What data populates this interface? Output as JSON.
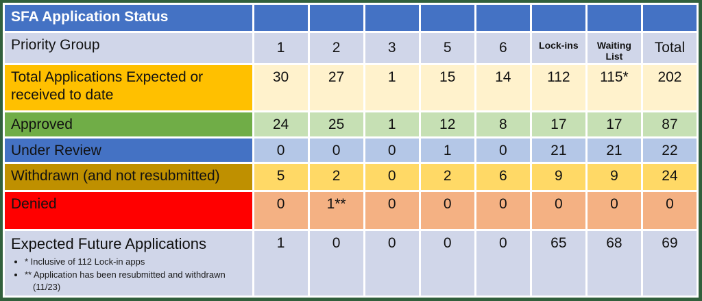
{
  "header": {
    "title": "SFA Application Status"
  },
  "priority": {
    "label": "Priority Group",
    "cols": [
      "1",
      "2",
      "3",
      "5",
      "6",
      "Lock-ins",
      "Waiting List",
      "Total"
    ]
  },
  "rows": [
    {
      "label": "Total Applications Expected or received to date",
      "values": [
        "30",
        "27",
        "1",
        "15",
        "14",
        "112",
        "115*",
        "202"
      ]
    },
    {
      "label": "Approved",
      "values": [
        "24",
        "25",
        "1",
        "12",
        "8",
        "17",
        "17",
        "87"
      ]
    },
    {
      "label": "Under Review",
      "values": [
        "0",
        "0",
        "0",
        "1",
        "0",
        "21",
        "21",
        "22"
      ]
    },
    {
      "label": "Withdrawn (and not resubmitted)",
      "values": [
        "5",
        "2",
        "0",
        "2",
        "6",
        "9",
        "9",
        "24"
      ]
    },
    {
      "label": "Denied",
      "values": [
        "0",
        "1**",
        "0",
        "0",
        "0",
        "0",
        "0",
        "0"
      ]
    },
    {
      "label": "Expected Future Applications",
      "values": [
        "1",
        "0",
        "0",
        "0",
        "0",
        "65",
        "68",
        "69"
      ],
      "footnotes": [
        {
          "text": "* Inclusive of 112 Lock-in apps",
          "cont": ""
        },
        {
          "text": "** Application has been resubmitted and withdrawn",
          "cont": "(11/23)"
        }
      ]
    }
  ],
  "colors": {
    "header_blue": "#4472C4",
    "lavender": "#D0D6E9",
    "orange_label": "#FFC000",
    "cream_data": "#FFF2CC",
    "green_label": "#70AD47",
    "light_green_data": "#C6E0B4",
    "blue_label": "#4472C4",
    "light_blue_data": "#B4C7E7",
    "gold_label": "#BF9000",
    "yellow_data": "#FFD966",
    "red_label": "#FF0000",
    "salmon_data": "#F4B183",
    "outer_border_green": "#31603C",
    "title_text": "#FFFFFF"
  },
  "chart_data": {
    "type": "table",
    "title": "SFA Application Status",
    "categories": [
      "1",
      "2",
      "3",
      "5",
      "6",
      "Lock-ins",
      "Waiting List",
      "Total"
    ],
    "series": [
      {
        "name": "Total Applications Expected or received to date",
        "values": [
          30,
          27,
          1,
          15,
          14,
          112,
          115,
          202
        ]
      },
      {
        "name": "Approved",
        "values": [
          24,
          25,
          1,
          12,
          8,
          17,
          17,
          87
        ]
      },
      {
        "name": "Under Review",
        "values": [
          0,
          0,
          0,
          1,
          0,
          21,
          21,
          22
        ]
      },
      {
        "name": "Withdrawn (and not resubmitted)",
        "values": [
          5,
          2,
          0,
          2,
          6,
          9,
          9,
          24
        ]
      },
      {
        "name": "Denied",
        "values": [
          0,
          1,
          0,
          0,
          0,
          0,
          0,
          0
        ]
      },
      {
        "name": "Expected Future Applications",
        "values": [
          1,
          0,
          0,
          0,
          0,
          65,
          68,
          69
        ]
      }
    ],
    "annotations": [
      "* Inclusive of 112 Lock-in apps",
      "** Application has been resubmitted and withdrawn (11/23)"
    ]
  }
}
